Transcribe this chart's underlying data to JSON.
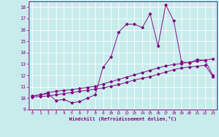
{
  "xlabel": "Windchill (Refroidissement éolien,°C)",
  "xlim": [
    -0.5,
    23.5
  ],
  "ylim": [
    9,
    18.5
  ],
  "yticks": [
    9,
    10,
    11,
    12,
    13,
    14,
    15,
    16,
    17,
    18
  ],
  "xticks": [
    0,
    1,
    2,
    3,
    4,
    5,
    6,
    7,
    8,
    9,
    10,
    11,
    12,
    13,
    14,
    15,
    16,
    17,
    18,
    19,
    20,
    21,
    22,
    23
  ],
  "bg_color": "#c8ecec",
  "grid_color": "#b0d8d8",
  "line_color": "#800080",
  "line1_x": [
    0,
    1,
    2,
    3,
    4,
    5,
    6,
    7,
    8,
    9,
    10,
    11,
    12,
    13,
    14,
    15,
    16,
    17,
    18,
    19,
    20,
    21,
    22,
    23
  ],
  "line1_y": [
    10.2,
    10.3,
    10.4,
    9.8,
    9.9,
    9.6,
    9.7,
    10.0,
    10.3,
    12.7,
    13.6,
    15.8,
    16.5,
    16.5,
    16.2,
    17.4,
    14.6,
    18.2,
    16.8,
    13.2,
    13.1,
    13.4,
    13.3,
    12.0
  ],
  "line2_x": [
    0,
    1,
    2,
    3,
    4,
    5,
    6,
    7,
    8,
    9,
    10,
    11,
    12,
    13,
    14,
    15,
    16,
    17,
    18,
    19,
    20,
    21,
    22,
    23
  ],
  "line2_y": [
    10.2,
    10.3,
    10.5,
    10.6,
    10.7,
    10.75,
    10.85,
    10.95,
    11.05,
    11.25,
    11.45,
    11.65,
    11.85,
    12.05,
    12.25,
    12.45,
    12.65,
    12.85,
    12.95,
    13.05,
    13.15,
    13.25,
    13.35,
    13.45
  ],
  "line3_x": [
    0,
    1,
    2,
    3,
    4,
    5,
    6,
    7,
    8,
    9,
    10,
    11,
    12,
    13,
    14,
    15,
    16,
    17,
    18,
    19,
    20,
    21,
    22,
    23
  ],
  "line3_y": [
    10.1,
    10.15,
    10.2,
    10.3,
    10.4,
    10.5,
    10.6,
    10.7,
    10.8,
    10.9,
    11.05,
    11.2,
    11.4,
    11.6,
    11.75,
    11.9,
    12.1,
    12.3,
    12.5,
    12.65,
    12.75,
    12.8,
    12.9,
    11.9
  ]
}
